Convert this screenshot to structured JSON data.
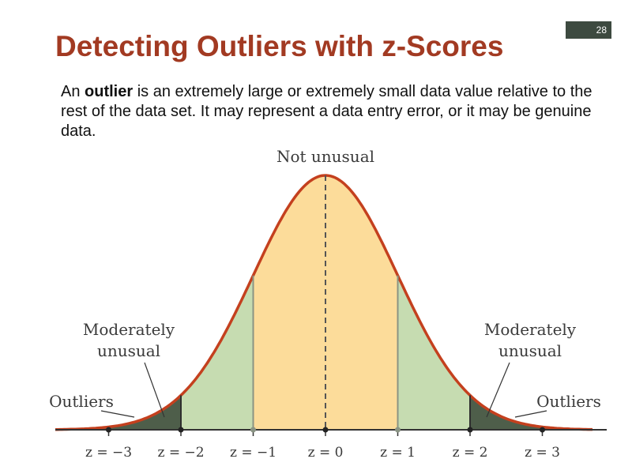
{
  "slide": {
    "number": "28",
    "title": "Detecting Outliers with z-Scores",
    "intro": {
      "prefix": "An ",
      "term": "outlier",
      "rest": " is an extremely large or extremely small data value relative to the rest of the data set. It may represent a data entry error, or it may be genuine data."
    }
  },
  "diagram": {
    "top_label": "Not unusual",
    "left_mod_label_line1": "Moderately",
    "left_mod_label_line2": "unusual",
    "right_mod_label_line1": "Moderately",
    "right_mod_label_line2": "unusual",
    "left_outlier_label": "Outliers",
    "right_outlier_label": "Outliers",
    "z_ticks": [
      {
        "z": -3,
        "label": "z = −3"
      },
      {
        "z": -2,
        "label": "z = −2"
      },
      {
        "z": -1,
        "label": "z = −1"
      },
      {
        "z": 0,
        "label": "z = 0"
      },
      {
        "z": 1,
        "label": "z = 1"
      },
      {
        "z": 2,
        "label": "z = 2"
      },
      {
        "z": 3,
        "label": "z = 3"
      }
    ],
    "colors": {
      "center": "#fcdc9a",
      "moderate": "#c6dcb1",
      "outlier": "#4e5e4a",
      "curve": "#c4401e",
      "axis": "#333333"
    }
  }
}
